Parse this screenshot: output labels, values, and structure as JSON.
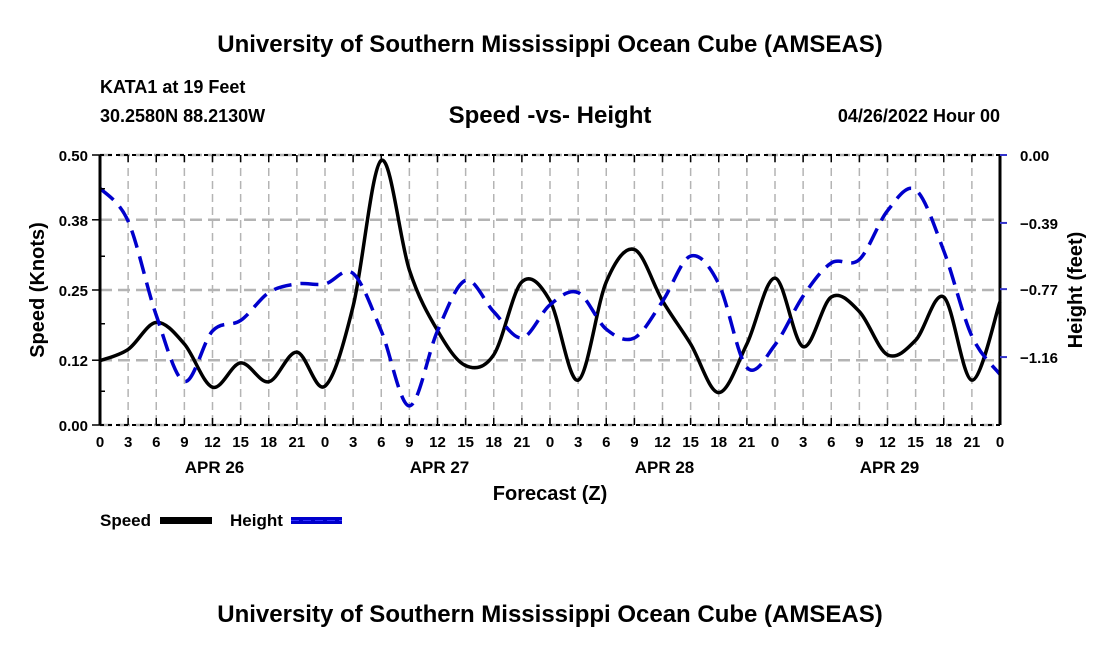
{
  "header": {
    "title": "University of Southern Mississippi Ocean Cube (AMSEAS)",
    "station": "KATA1 at 19 Feet",
    "coords": "30.2580N  88.2130W",
    "chart_title": "Speed -vs- Height",
    "issue_time": "04/26/2022 Hour 00"
  },
  "footer": {
    "title": "University of Southern Mississippi Ocean Cube (AMSEAS)"
  },
  "colors": {
    "speed": "#000000",
    "height": "#0000cc",
    "grid": "#b4b4b4"
  },
  "chart_data": {
    "type": "line",
    "title": "Speed -vs- Height",
    "xlabel": "Forecast (Z)",
    "ylabel": "Speed (Knots)",
    "y2label": "Height (feet)",
    "grid": true,
    "legend_position": "bottom-left",
    "x_hours": [
      0,
      3,
      6,
      9,
      12,
      15,
      18,
      21,
      24,
      27,
      30,
      33,
      36,
      39,
      42,
      45,
      48,
      51,
      54,
      57,
      60,
      63,
      66,
      69,
      72,
      75,
      78,
      81,
      84,
      87,
      90,
      93,
      96
    ],
    "x_tick_labels": [
      "0",
      "3",
      "6",
      "9",
      "12",
      "15",
      "18",
      "21",
      "0",
      "3",
      "6",
      "9",
      "12",
      "15",
      "18",
      "21",
      "0",
      "3",
      "6",
      "9",
      "12",
      "15",
      "18",
      "21",
      "0",
      "3",
      "6",
      "9",
      "12",
      "15",
      "18",
      "21",
      "0"
    ],
    "x_day_labels": [
      {
        "label": "APR 26",
        "hour": 12
      },
      {
        "label": "APR 27",
        "hour": 36
      },
      {
        "label": "APR 28",
        "hour": 60
      },
      {
        "label": "APR 29",
        "hour": 84
      }
    ],
    "xlim": [
      0,
      96
    ],
    "ylim": [
      0,
      0.5
    ],
    "y_ticks": [
      0.0,
      0.12,
      0.25,
      0.38,
      0.5
    ],
    "y_tick_labels": [
      "0.00",
      "0.12",
      "0.25",
      "0.38",
      "0.50"
    ],
    "y2lim": [
      -1.55,
      0
    ],
    "y2_ticks": [
      0.0,
      -0.39,
      -0.77,
      -1.16
    ],
    "y2_tick_labels": [
      "0.00",
      "−0.39",
      "−0.77",
      "−1.16"
    ],
    "series": [
      {
        "name": "Speed",
        "axis": "left",
        "style": "solid",
        "values": [
          0.119,
          0.14,
          0.19,
          0.15,
          0.07,
          0.115,
          0.08,
          0.135,
          0.072,
          0.22,
          0.49,
          0.287,
          0.175,
          0.11,
          0.13,
          0.265,
          0.23,
          0.083,
          0.265,
          0.325,
          0.23,
          0.15,
          0.06,
          0.15,
          0.272,
          0.145,
          0.237,
          0.21,
          0.13,
          0.157,
          0.237,
          0.083,
          0.228
        ]
      },
      {
        "name": "Height",
        "axis": "right",
        "style": "dashed",
        "values": [
          -0.19,
          -0.38,
          -0.92,
          -1.3,
          -1.01,
          -0.95,
          -0.79,
          -0.74,
          -0.74,
          -0.68,
          -1.01,
          -1.44,
          -1.01,
          -0.72,
          -0.9,
          -1.05,
          -0.86,
          -0.79,
          -1.0,
          -1.05,
          -0.84,
          -0.58,
          -0.74,
          -1.22,
          -1.09,
          -0.81,
          -0.62,
          -0.6,
          -0.32,
          -0.2,
          -0.55,
          -1.04,
          -1.26
        ]
      }
    ]
  }
}
